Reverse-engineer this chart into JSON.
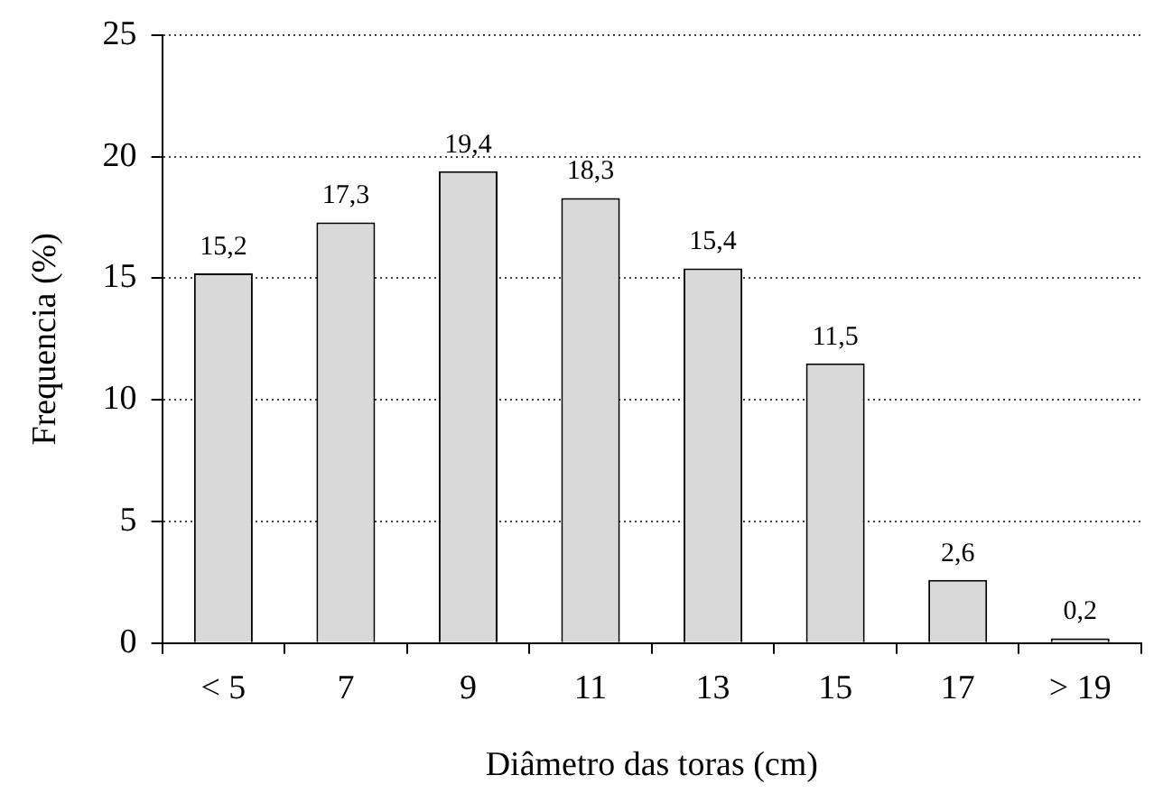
{
  "chart_data": {
    "type": "bar",
    "xlabel": "Diâmetro das toras (cm)",
    "ylabel": "Frequencia (%)",
    "categories": [
      "< 5",
      "7",
      "9",
      "11",
      "13",
      "15",
      "17",
      "> 19"
    ],
    "values": [
      15.2,
      17.3,
      19.4,
      18.3,
      15.4,
      11.5,
      2.6,
      0.2
    ],
    "value_labels": [
      "15,2",
      "17,3",
      "19,4",
      "18,3",
      "15,4",
      "11,5",
      "2,6",
      "0,2"
    ],
    "color": "#d9d9d9",
    "ylim": [
      0,
      25
    ],
    "yticks": [
      0,
      5,
      10,
      15,
      20,
      25
    ],
    "grid": "y",
    "legend": false
  }
}
